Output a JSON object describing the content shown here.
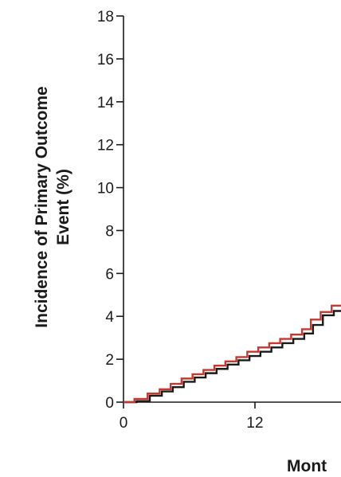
{
  "chart_data": {
    "type": "line",
    "step": true,
    "ylabel": "Incidence of Primary Outcome Event (%)",
    "ylabel_lines": [
      "Incidence of Primary Outcome",
      "Event (%)"
    ],
    "xlabel": "Mont",
    "ylim": [
      0,
      18
    ],
    "y_ticks": [
      0,
      2,
      4,
      6,
      8,
      10,
      12,
      14,
      16,
      18
    ],
    "x_visible_range": [
      0,
      20.5
    ],
    "x_ticks": [
      0,
      12
    ],
    "grid": false,
    "series": [
      {
        "color": "#1a1a1a",
        "x": [
          0,
          1.2,
          2.4,
          3.5,
          4.5,
          5.5,
          6.5,
          7.5,
          8.5,
          9.5,
          10.5,
          11.5,
          12.5,
          13.5,
          14.5,
          15.5,
          16.5,
          17.3,
          18.2,
          19.2,
          20.5
        ],
        "y": [
          0,
          0.05,
          0.3,
          0.5,
          0.7,
          0.95,
          1.15,
          1.35,
          1.55,
          1.75,
          1.95,
          2.15,
          2.35,
          2.55,
          2.75,
          2.95,
          3.2,
          3.6,
          4.05,
          4.25,
          4.25
        ]
      },
      {
        "color": "#c8372d",
        "x": [
          0,
          1.0,
          2.2,
          3.3,
          4.3,
          5.3,
          6.3,
          7.3,
          8.3,
          9.3,
          10.3,
          11.3,
          12.3,
          13.3,
          14.3,
          15.3,
          16.3,
          17.1,
          18.0,
          19.0,
          20.5
        ],
        "y": [
          0,
          0.15,
          0.4,
          0.6,
          0.85,
          1.1,
          1.3,
          1.5,
          1.7,
          1.9,
          2.1,
          2.35,
          2.55,
          2.75,
          2.95,
          3.15,
          3.4,
          3.85,
          4.2,
          4.5,
          4.5
        ]
      }
    ]
  }
}
